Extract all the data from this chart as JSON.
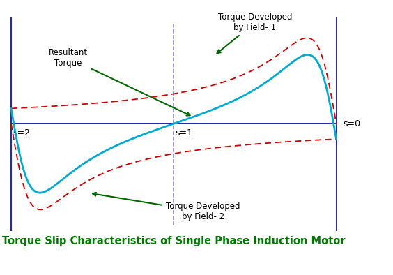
{
  "title": "Torque Slip Characteristics of Single Phase Induction Motor",
  "title_color": "#007700",
  "title_fontsize": 10.5,
  "background_color": "#ffffff",
  "s0_label": "s=0",
  "s1_label": "s=1",
  "s2_label": "s=2",
  "field1_label": "Torque Developed\nby Field- 1",
  "field2_label": "Torque Developed\nby Field- 2",
  "resultant_label": "Resultant\nTorque",
  "field1_color": "#cc0000",
  "resultant_color": "#00aacc",
  "axis_color": "#2222aa",
  "dashed_line_color": "#7777bb",
  "arrow_color": "#006600",
  "annotation_color": "#000000",
  "R": 0.18,
  "X": 1.0,
  "scale": 0.78
}
